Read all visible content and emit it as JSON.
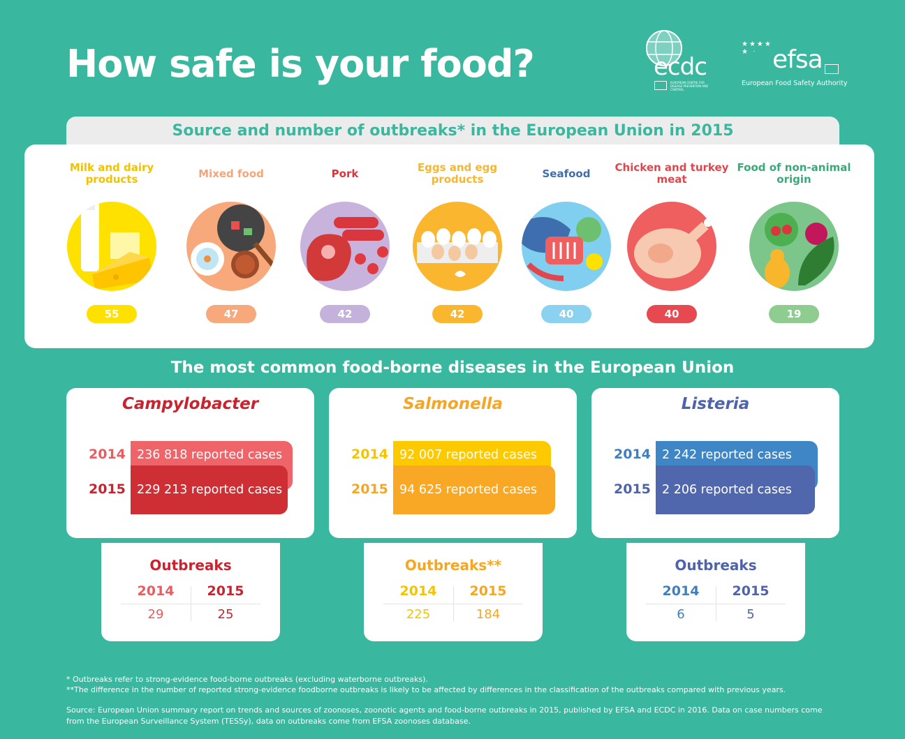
{
  "title": "How safe is your food?",
  "logos": {
    "ecdc": "ecdc",
    "ecdc_sub": "EUROPEAN CENTRE FOR DISEASE PREVENTION AND CONTROL",
    "efsa": "efsa",
    "efsa_sub": "European Food Safety Authority"
  },
  "sources": {
    "title": "Source and number of outbreaks* in the European Union in 2015",
    "items": [
      {
        "label": "Milk and dairy products",
        "count": "55",
        "icon": "milk-cheese-icon",
        "label_color": "#f2c200",
        "circle_color": "#ffe100",
        "pill_color": "#ffe100"
      },
      {
        "label": "Mixed food",
        "count": "47",
        "icon": "mixed-food-icon",
        "label_color": "#f5a57a",
        "circle_color": "#f7a97c",
        "pill_color": "#f7a97c"
      },
      {
        "label": "Pork",
        "count": "42",
        "icon": "pork-icon",
        "label_color": "#d9373d",
        "circle_color": "#c7b3dc",
        "pill_color": "#c4b1dc"
      },
      {
        "label": "Eggs and egg products",
        "count": "42",
        "icon": "eggs-icon",
        "label_color": "#f8b62d",
        "circle_color": "#fbb630",
        "pill_color": "#fbb630"
      },
      {
        "label": "Seafood",
        "count": "40",
        "icon": "seafood-icon",
        "label_color": "#3e6eae",
        "circle_color": "#80cff0",
        "pill_color": "#8bd2f1"
      },
      {
        "label": "Chicken and turkey meat",
        "count": "40",
        "icon": "chicken-icon",
        "label_color": "#e2464c",
        "circle_color": "#ef5f5f",
        "pill_color": "#e64a50"
      },
      {
        "label": "Food of non-animal origin",
        "count": "19",
        "icon": "vegetables-icon",
        "label_color": "#3aa97a",
        "circle_color": "#7cc68b",
        "pill_color": "#8fcc8f"
      }
    ]
  },
  "diseases": {
    "title": "The most common food-borne diseases in the European Union",
    "items": [
      {
        "name": "Campylobacter",
        "color": "#c9232f",
        "y2014": "2014",
        "y2015": "2015",
        "cases2014": 236818,
        "cases2015": 229213,
        "label2014": "236 818 reported cases",
        "label2015": "229 213 reported cases",
        "bar2014": "#ee6468",
        "bar2015": "#cd2f34",
        "year2014_color": "#e95d62",
        "year2015_color": "#c9232f",
        "outbreaks": {
          "title": "Outbreaks",
          "v2014": "29",
          "v2015": "25",
          "c2014": "#e95d62",
          "c2015": "#c9232f",
          "vcolor2014": "#e95d62",
          "vcolor2015": "#c9232f"
        }
      },
      {
        "name": "Salmonella",
        "color": "#f5a623",
        "y2014": "2014",
        "y2015": "2015",
        "cases2014": 92007,
        "cases2015": 94625,
        "label2014": "92 007 reported cases",
        "label2015": "94 625 reported cases",
        "bar2014": "#fdc900",
        "bar2015": "#f9a825",
        "year2014_color": "#f5c400",
        "year2015_color": "#f5a623",
        "outbreaks": {
          "title": "Outbreaks**",
          "v2014": "225",
          "v2015": "184",
          "c2014": "#f5c400",
          "c2015": "#f5a623",
          "vcolor2014": "#f5c400",
          "vcolor2015": "#f5a623"
        }
      },
      {
        "name": "Listeria",
        "color": "#4e63a8",
        "y2014": "2014",
        "y2015": "2015",
        "cases2014": 2242,
        "cases2015": 2206,
        "label2014": "2 242 reported cases",
        "label2015": "2 206 reported cases",
        "bar2014": "#3f86c6",
        "bar2015": "#5067ad",
        "year2014_color": "#3f7fbf",
        "year2015_color": "#4e63a8",
        "outbreaks": {
          "title": "Outbreaks",
          "v2014": "6",
          "v2015": "5",
          "c2014": "#3f7fbf",
          "c2015": "#4e63a8",
          "vcolor2014": "#3f7fbf",
          "vcolor2015": "#4e63a8"
        }
      }
    ]
  },
  "footnotes": {
    "f1": "* Outbreaks refer to strong-evidence food-borne outbreaks (excluding waterborne outbreaks).",
    "f2": "**The difference in the number of reported strong-evidence foodborne outbreaks is likely to be affected by differences in the classification of the outbreaks compared with previous years.",
    "source": "Source: European Union summary report on trends and sources of zoonoses, zoonotic agents and food-borne outbreaks in 2015, published by EFSA and ECDC in 2016. Data on case numbers come from the European Surveillance System (TESSy), data on outbreaks come from EFSA zoonoses database."
  }
}
